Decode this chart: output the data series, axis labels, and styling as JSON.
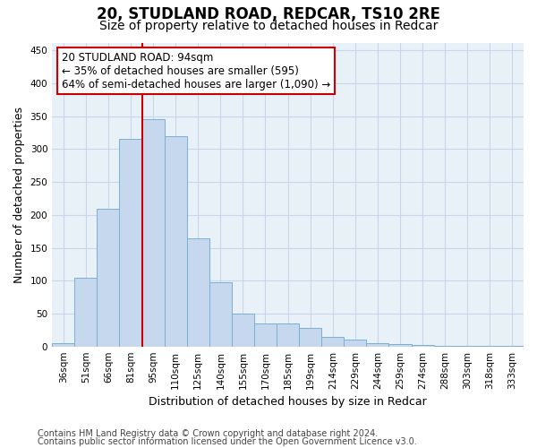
{
  "title1": "20, STUDLAND ROAD, REDCAR, TS10 2RE",
  "title2": "Size of property relative to detached houses in Redcar",
  "xlabel": "Distribution of detached houses by size in Redcar",
  "ylabel": "Number of detached properties",
  "categories": [
    "36sqm",
    "51sqm",
    "66sqm",
    "81sqm",
    "95sqm",
    "110sqm",
    "125sqm",
    "140sqm",
    "155sqm",
    "170sqm",
    "185sqm",
    "199sqm",
    "214sqm",
    "229sqm",
    "244sqm",
    "259sqm",
    "274sqm",
    "288sqm",
    "303sqm",
    "318sqm",
    "333sqm"
  ],
  "values": [
    5,
    105,
    210,
    315,
    345,
    320,
    165,
    97,
    50,
    35,
    35,
    28,
    15,
    10,
    5,
    4,
    2,
    1,
    1,
    1,
    1
  ],
  "bar_color": "#c5d8ed",
  "bar_edge_color": "#7aafd4",
  "vline_color": "#cc0000",
  "vline_x": 3.5,
  "annotation_text": "20 STUDLAND ROAD: 94sqm\n← 35% of detached houses are smaller (595)\n64% of semi-detached houses are larger (1,090) →",
  "annotation_box_color": "#ffffff",
  "annotation_border_color": "#cc0000",
  "ylim": [
    0,
    462
  ],
  "yticks": [
    0,
    50,
    100,
    150,
    200,
    250,
    300,
    350,
    400,
    450
  ],
  "footer1": "Contains HM Land Registry data © Crown copyright and database right 2024.",
  "footer2": "Contains public sector information licensed under the Open Government Licence v3.0.",
  "bg_color": "#ffffff",
  "plot_bg_color": "#e8f0f8",
  "grid_color": "#c8d8e8",
  "title1_fontsize": 12,
  "title2_fontsize": 10,
  "axis_label_fontsize": 9,
  "tick_fontsize": 7.5,
  "annotation_fontsize": 8.5,
  "footer_fontsize": 7
}
